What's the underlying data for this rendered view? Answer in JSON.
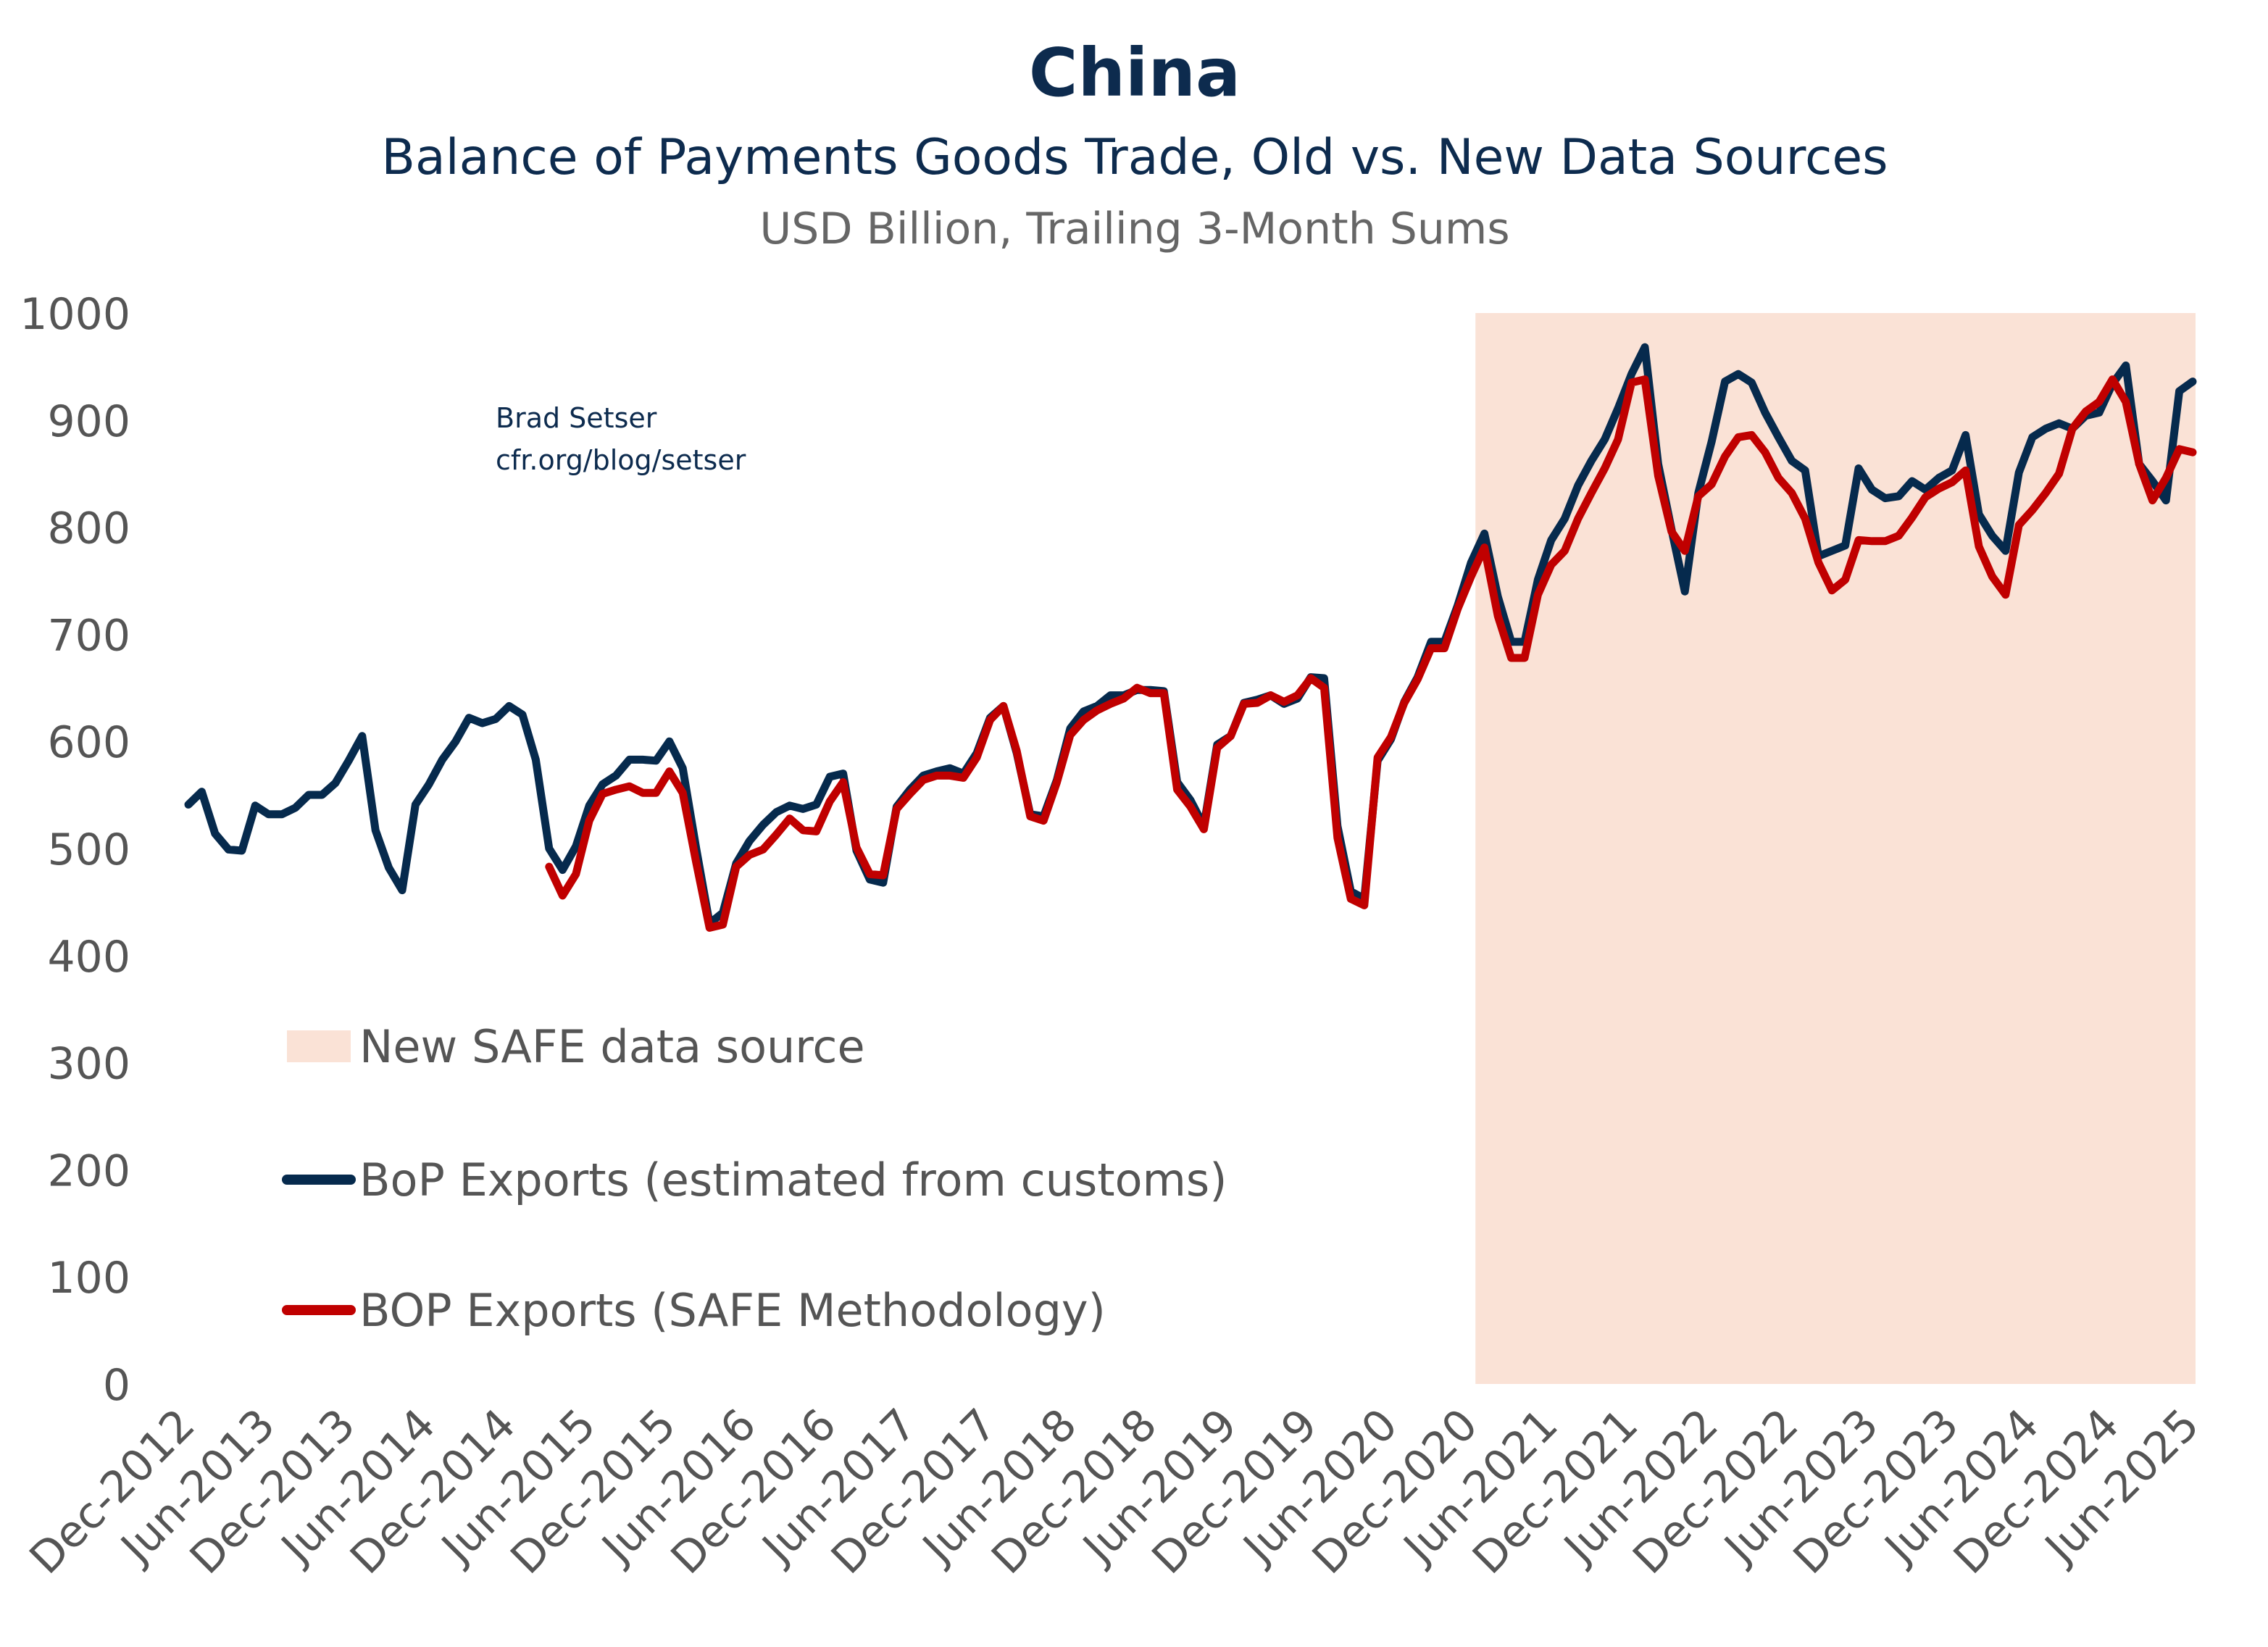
{
  "chart_data": {
    "type": "line",
    "title": "China",
    "subtitle": "Balance of Payments Goods Trade, Old vs. New Data Sources",
    "units": "USD Billion, Trailing 3-Month Sums",
    "annotation": [
      "Brad Setser",
      "cfr.org/blog/setser"
    ],
    "xlabel": "",
    "ylabel": "",
    "ylim": [
      0,
      1000
    ],
    "yticks": [
      "0",
      "100",
      "200",
      "300",
      "400",
      "500",
      "600",
      "700",
      "800",
      "900",
      "1000"
    ],
    "x_start": "Dec-2012",
    "x_frequency": "monthly",
    "xticks": [
      "Dec-2012",
      "Jun-2013",
      "Dec-2013",
      "Jun-2014",
      "Dec-2014",
      "Jun-2015",
      "Dec-2015",
      "Jun-2016",
      "Dec-2016",
      "Jun-2017",
      "Dec-2017",
      "Jun-2018",
      "Dec-2018",
      "Jun-2019",
      "Dec-2019",
      "Jun-2020",
      "Dec-2020",
      "Jun-2021",
      "Dec-2021",
      "Jun-2022",
      "Dec-2022",
      "Jun-2023",
      "Dec-2023",
      "Jun-2024",
      "Dec-2024",
      "Jun-2025"
    ],
    "shaded_region": {
      "label": "New SAFE data source",
      "from": "Dec-2020",
      "to": "Jun-2025",
      "color": "#fae2d6"
    },
    "grid": false,
    "legend_position": "lower-left",
    "series": [
      {
        "name": "BoP Exports (estimated from customs)",
        "color": "#062a4d",
        "start_index": 0,
        "values": [
          541,
          553,
          514,
          499,
          498,
          540,
          532,
          532,
          538,
          550,
          550,
          561,
          582,
          605,
          517,
          482,
          461,
          541,
          560,
          583,
          600,
          622,
          617,
          621,
          633,
          625,
          583,
          500,
          480,
          502,
          540,
          560,
          568,
          583,
          583,
          582,
          600,
          575,
          500,
          430,
          440,
          486,
          507,
          522,
          534,
          540,
          537,
          541,
          567,
          570,
          498,
          471,
          468,
          539,
          555,
          568,
          572,
          575,
          570,
          589,
          622,
          633,
          589,
          532,
          530,
          564,
          612,
          628,
          633,
          643,
          643,
          648,
          648,
          647,
          562,
          545,
          521,
          597,
          605,
          636,
          639,
          643,
          635,
          640,
          660,
          659,
          521,
          460,
          453,
          582,
          602,
          637,
          660,
          693,
          693,
          727,
          767,
          794,
          735,
          693,
          693,
          751,
          788,
          808,
          839,
          862,
          882,
          911,
          943,
          968,
          859,
          798,
          740,
          832,
          880,
          936,
          943,
          935,
          907,
          884,
          862,
          853,
          773,
          778,
          783,
          855,
          835,
          827,
          829,
          843,
          835,
          846,
          853,
          886,
          812,
          792,
          778,
          851,
          884,
          892,
          897,
          892,
          904,
          907,
          934,
          951,
          859,
          843,
          825,
          927,
          936
        ]
      },
      {
        "name": "BOP Exports (SAFE Methodology)",
        "color": "#c00000",
        "start_index": 27,
        "values": [
          483,
          456,
          476,
          526,
          551,
          555,
          558,
          552,
          552,
          572,
          552,
          487,
          426,
          429,
          483,
          494,
          499,
          513,
          528,
          517,
          516,
          544,
          562,
          501,
          476,
          475,
          537,
          551,
          564,
          568,
          568,
          566,
          585,
          620,
          633,
          591,
          530,
          526,
          562,
          606,
          620,
          629,
          635,
          640,
          650,
          645,
          645,
          555,
          539,
          518,
          594,
          605,
          635,
          636,
          643,
          637,
          643,
          659,
          650,
          510,
          453,
          447,
          585,
          604,
          636,
          658,
          687,
          687,
          724,
          754,
          781,
          717,
          678,
          678,
          737,
          765,
          778,
          808,
          832,
          855,
          882,
          935,
          938,
          848,
          796,
          778,
          829,
          840,
          866,
          884,
          886,
          870,
          846,
          832,
          808,
          767,
          741,
          751,
          788,
          787,
          787,
          792,
          809,
          828,
          836,
          842,
          853,
          782,
          754,
          737,
          802,
          816,
          832,
          850,
          892,
          908,
          917,
          938,
          917,
          859,
          825,
          846,
          873,
          870
        ]
      }
    ]
  }
}
